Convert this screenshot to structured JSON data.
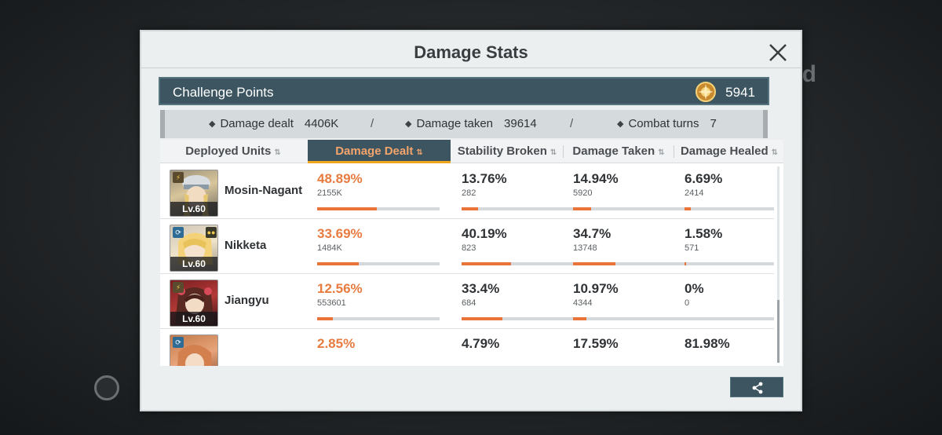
{
  "background": {
    "right_text": "ed"
  },
  "dialog": {
    "title": "Damage Stats",
    "close_icon": "close-x-icon"
  },
  "challenge": {
    "label": "Challenge Points",
    "icon": "gold-medal-icon",
    "value": "5941"
  },
  "summary": {
    "damage_dealt_label": "Damage dealt",
    "damage_dealt_value": "4406K",
    "damage_taken_label": "Damage taken",
    "damage_taken_value": "39614",
    "combat_turns_label": "Combat turns",
    "combat_turns_value": "7",
    "separator": "/"
  },
  "columns": [
    {
      "label": "Deployed Units",
      "sort": "⇅"
    },
    {
      "label": "Damage Dealt",
      "sort": "⇅"
    },
    {
      "label": "Stability Broken",
      "sort": "⇅"
    },
    {
      "label": "Damage Taken",
      "sort": "⇅"
    },
    {
      "label": "Damage Healed",
      "sort": "⇅"
    }
  ],
  "rows": [
    {
      "name": "Mosin-Nagant",
      "level": "Lv.60",
      "damage_dealt": {
        "pct": "48.89%",
        "raw": "2155K",
        "frac": 0.4889
      },
      "stability_broken": {
        "pct": "13.76%",
        "raw": "282",
        "frac": 0.1376
      },
      "damage_taken": {
        "pct": "14.94%",
        "raw": "5920",
        "frac": 0.1494
      },
      "damage_healed": {
        "pct": "6.69%",
        "raw": "2414",
        "frac": 0.0669
      }
    },
    {
      "name": "Nikketa",
      "level": "Lv.60",
      "damage_dealt": {
        "pct": "33.69%",
        "raw": "1484K",
        "frac": 0.3369
      },
      "stability_broken": {
        "pct": "40.19%",
        "raw": "823",
        "frac": 0.4019
      },
      "damage_taken": {
        "pct": "34.7%",
        "raw": "13748",
        "frac": 0.347
      },
      "damage_healed": {
        "pct": "1.58%",
        "raw": "571",
        "frac": 0.0158
      }
    },
    {
      "name": "Jiangyu",
      "level": "Lv.60",
      "damage_dealt": {
        "pct": "12.56%",
        "raw": "553601",
        "frac": 0.1256
      },
      "stability_broken": {
        "pct": "33.4%",
        "raw": "684",
        "frac": 0.334
      },
      "damage_taken": {
        "pct": "10.97%",
        "raw": "4344",
        "frac": 0.1097
      },
      "damage_healed": {
        "pct": "0%",
        "raw": "0",
        "frac": 0
      }
    },
    {
      "name": "",
      "level": "",
      "damage_dealt": {
        "pct": "2.85%",
        "raw": "",
        "frac": 0.0285
      },
      "stability_broken": {
        "pct": "4.79%",
        "raw": "",
        "frac": 0.0479
      },
      "damage_taken": {
        "pct": "17.59%",
        "raw": "",
        "frac": 0.1759
      },
      "damage_healed": {
        "pct": "81.98%",
        "raw": "",
        "frac": 0.8198
      }
    }
  ],
  "share_icon": "share-icon",
  "colors": {
    "accent_dark": "#3d5560",
    "highlight_orange": "#e87b3f",
    "active_underline": "#f0a51e"
  }
}
